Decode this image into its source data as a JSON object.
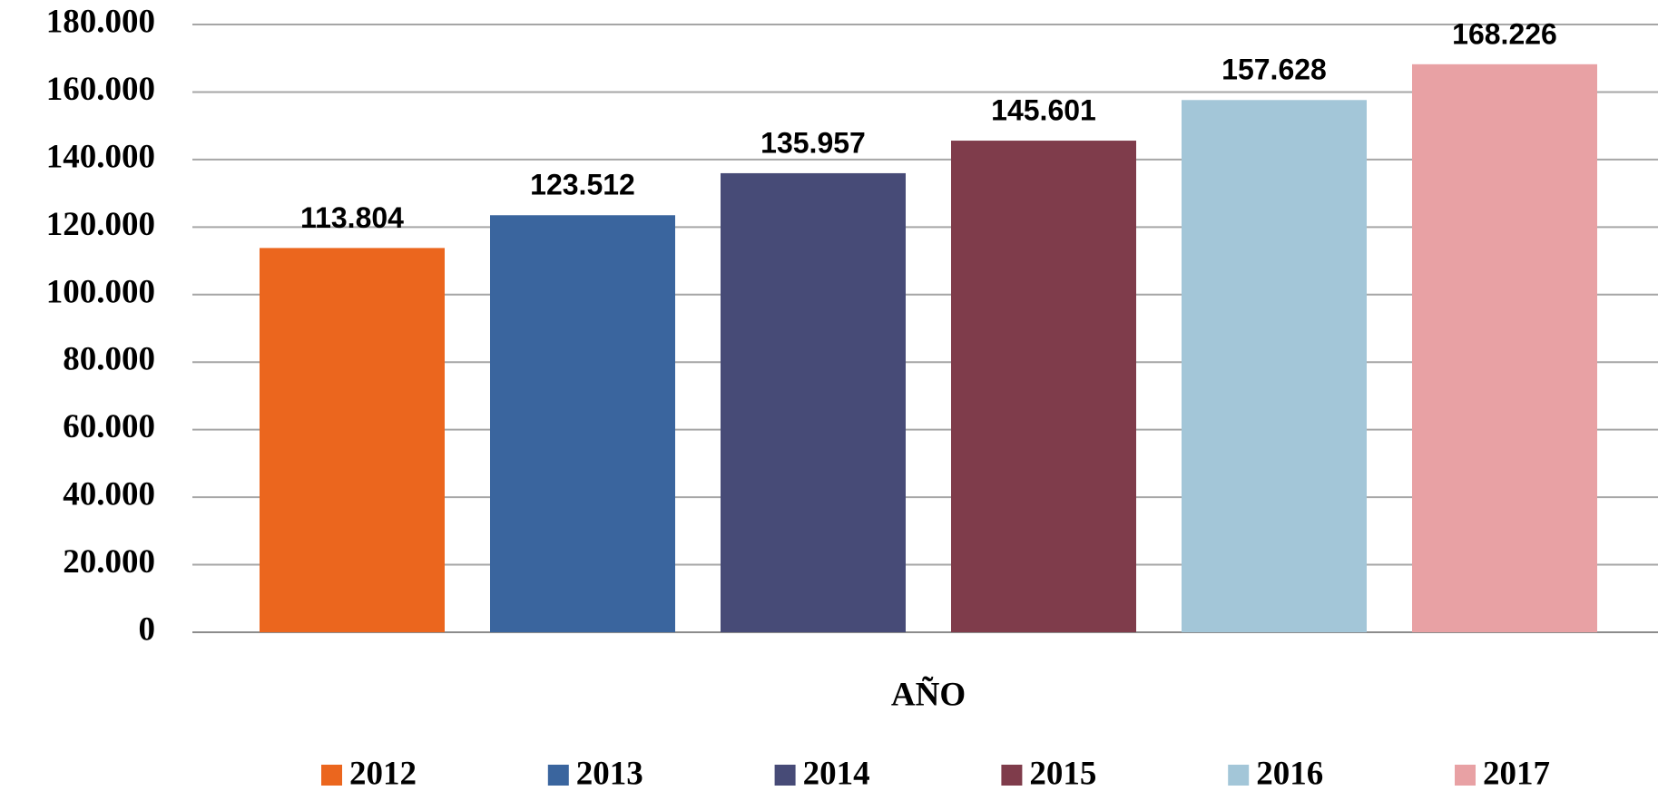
{
  "chart_data": {
    "type": "bar",
    "x_label": "AÑO",
    "series": [
      {
        "name": "2012",
        "color": "#eb661e",
        "values": [
          113804
        ],
        "value_labels": [
          "113.804"
        ]
      },
      {
        "name": "2013",
        "color": "#3a659e",
        "values": [
          123512
        ],
        "value_labels": [
          "123.512"
        ]
      },
      {
        "name": "2014",
        "color": "#474b77",
        "values": [
          135957
        ],
        "value_labels": [
          "135.957"
        ]
      },
      {
        "name": "2015",
        "color": "#7f3c4b",
        "values": [
          145601
        ],
        "value_labels": [
          "145.601"
        ]
      },
      {
        "name": "2016",
        "color": "#a3c6d8",
        "values": [
          157628
        ],
        "value_labels": [
          "157.628"
        ]
      },
      {
        "name": "2017",
        "color": "#e8a1a4",
        "values": [
          168226
        ],
        "value_labels": [
          "168.226"
        ]
      }
    ],
    "ylim": [
      0,
      180000
    ],
    "yticks": [
      0,
      {
        "value": 20000,
        "label": "20.000"
      },
      {
        "value": 40000,
        "label": "40.000"
      },
      {
        "value": 60000,
        "label": "60.000"
      },
      {
        "value": 80000,
        "label": "80.000"
      },
      {
        "value": 100000,
        "label": "100.000"
      },
      {
        "value": 120000,
        "label": "120.000"
      },
      {
        "value": 140000,
        "label": "140.000"
      },
      {
        "value": 160000,
        "label": "160.000"
      },
      {
        "value": 180000,
        "label": "180.000"
      }
    ],
    "grid": true,
    "legend": "bottom"
  }
}
